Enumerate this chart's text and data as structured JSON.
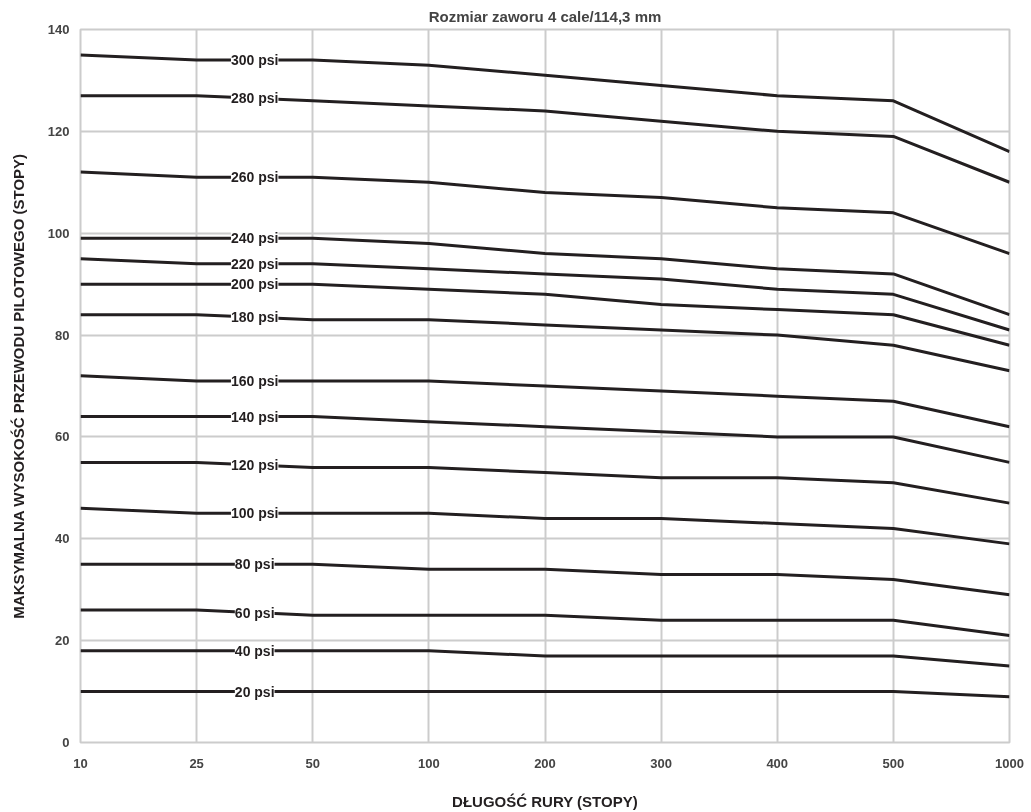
{
  "chart_data": {
    "type": "line",
    "title": "Rozmiar zaworu 4 cale/114,3 mm",
    "xlabel": "DŁUGOŚĆ RURY (STOPY)",
    "ylabel": "MAKSYMALNA WYSOKOŚĆ PRZEWODU PILOTOWEGO (STOPY)",
    "categories": [
      "10",
      "25",
      "50",
      "100",
      "200",
      "300",
      "400",
      "500",
      "1000"
    ],
    "ylim": [
      0,
      140
    ],
    "yticks": [
      0,
      20,
      40,
      60,
      80,
      100,
      120,
      140
    ],
    "grid": true,
    "line_style": "solid",
    "series": [
      {
        "name": "300 psi",
        "color": "#231f20",
        "values": [
          135,
          134,
          134,
          133,
          131,
          129,
          127,
          126,
          116
        ]
      },
      {
        "name": "280 psi",
        "color": "#231f20",
        "values": [
          127,
          127,
          126,
          125,
          124,
          122,
          120,
          119,
          110
        ]
      },
      {
        "name": "260 psi",
        "color": "#231f20",
        "values": [
          112,
          111,
          111,
          110,
          108,
          107,
          105,
          104,
          96
        ]
      },
      {
        "name": "240 psi",
        "color": "#231f20",
        "values": [
          99,
          99,
          99,
          98,
          96,
          95,
          93,
          92,
          84
        ]
      },
      {
        "name": "220 psi",
        "color": "#231f20",
        "values": [
          95,
          94,
          94,
          93,
          92,
          91,
          89,
          88,
          81
        ]
      },
      {
        "name": "200 psi",
        "color": "#231f20",
        "values": [
          90,
          90,
          90,
          89,
          88,
          86,
          85,
          84,
          78
        ]
      },
      {
        "name": "180 psi",
        "color": "#231f20",
        "values": [
          84,
          84,
          83,
          83,
          82,
          81,
          80,
          78,
          73
        ]
      },
      {
        "name": "160 psi",
        "color": "#231f20",
        "values": [
          72,
          71,
          71,
          71,
          70,
          69,
          68,
          67,
          62
        ]
      },
      {
        "name": "140 psi",
        "color": "#231f20",
        "values": [
          64,
          64,
          64,
          63,
          62,
          61,
          60,
          60,
          55
        ]
      },
      {
        "name": "120 psi",
        "color": "#231f20",
        "values": [
          55,
          55,
          54,
          54,
          53,
          52,
          52,
          51,
          47
        ]
      },
      {
        "name": "100 psi",
        "color": "#231f20",
        "values": [
          46,
          45,
          45,
          45,
          44,
          44,
          43,
          42,
          39
        ]
      },
      {
        "name": "80 psi",
        "color": "#231f20",
        "values": [
          35,
          35,
          35,
          34,
          34,
          33,
          33,
          32,
          29
        ]
      },
      {
        "name": "60 psi",
        "color": "#231f20",
        "values": [
          26,
          26,
          25,
          25,
          25,
          24,
          24,
          24,
          21
        ]
      },
      {
        "name": "40 psi",
        "color": "#231f20",
        "values": [
          18,
          18,
          18,
          18,
          17,
          17,
          17,
          17,
          15
        ]
      },
      {
        "name": "20 psi",
        "color": "#231f20",
        "values": [
          10,
          10,
          10,
          10,
          10,
          10,
          10,
          10,
          9
        ]
      }
    ]
  }
}
